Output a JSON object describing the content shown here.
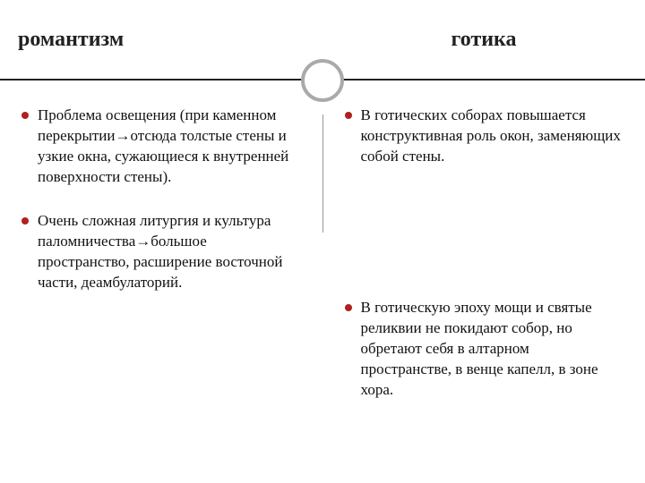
{
  "header": {
    "left_title": "романтизм",
    "right_title": "готика"
  },
  "left": {
    "items": [
      "Проблема освещения (при каменном перекрытии→отсюда толстые стены и узкие окна, сужающиеся к внутренней поверхности стены).",
      "Очень сложная литургия и культура паломничества→большое пространство, расширение восточной части, деамбулаторий."
    ]
  },
  "right": {
    "items": [
      "В готических соборах повышается конструктивная роль окон, заменяющих собой стены.",
      "В готическую эпоху мощи и святые реликвии не покидают собор, но обретают себя в алтарном пространстве, в венце капелл, в зоне хора."
    ]
  },
  "style": {
    "bullet_color": "#b02020",
    "divider_color": "#222222",
    "circle_border": "#aaaaaa",
    "background": "#ffffff",
    "title_fontsize": 24,
    "body_fontsize": 17
  }
}
